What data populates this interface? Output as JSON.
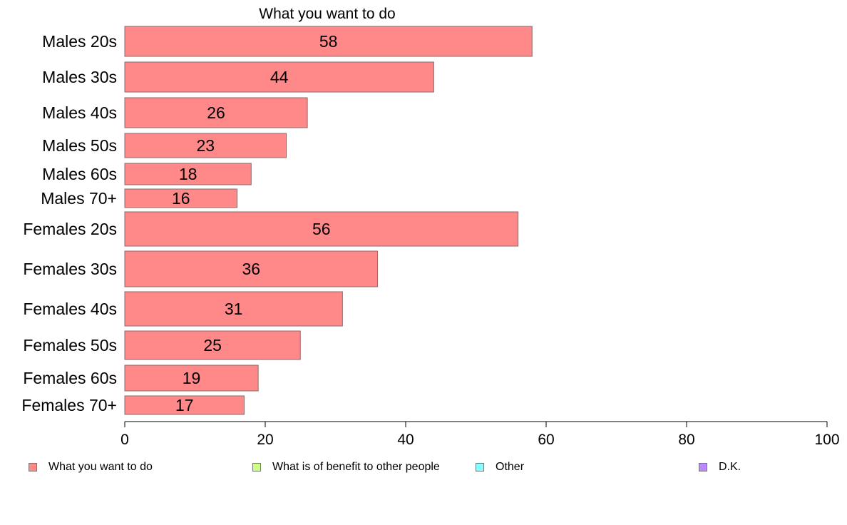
{
  "chart_data": {
    "type": "bar",
    "orientation": "horizontal",
    "title": "What you want to do",
    "categories": [
      "Males 20s",
      "Males 30s",
      "Males 40s",
      "Males 50s",
      "Males 60s",
      "Males 70+",
      "Females 20s",
      "Females 30s",
      "Females 40s",
      "Females 50s",
      "Females 60s",
      "Females 70+"
    ],
    "series": [
      {
        "name": "What you want to do",
        "values": [
          58,
          44,
          26,
          23,
          18,
          16,
          56,
          36,
          31,
          25,
          19,
          17
        ],
        "color": "#ff8888"
      }
    ],
    "xlim": [
      0,
      100
    ],
    "xticks": [
      0,
      20,
      40,
      60,
      80,
      100
    ],
    "grid": false,
    "legend_position": "bottom"
  },
  "legend": {
    "items": [
      {
        "label": "What you want to do",
        "color": "#ff8888"
      },
      {
        "label": "What is of benefit to other people",
        "color": "#ccff88"
      },
      {
        "label": "Other",
        "color": "#88ffff"
      },
      {
        "label": "D.K.",
        "color": "#bb88ff"
      }
    ]
  }
}
